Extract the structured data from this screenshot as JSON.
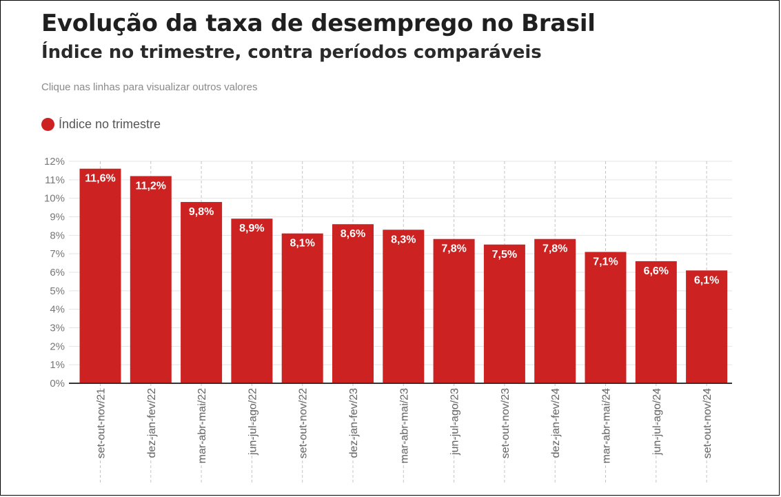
{
  "header": {
    "title": "Evolução da taxa de desemprego no Brasil",
    "subtitle": "Índice no trimestre, contra períodos comparáveis",
    "hint": "Clique nas linhas para visualizar outros valores"
  },
  "legend": {
    "label": "Índice no trimestre",
    "color": "#cc2222"
  },
  "chart_data": {
    "type": "bar",
    "title": "Evolução da taxa de desemprego no Brasil",
    "subtitle": "Índice no trimestre, contra períodos comparáveis",
    "xlabel": "",
    "ylabel": "",
    "ylim": [
      0,
      12
    ],
    "yticks": [
      0,
      1,
      2,
      3,
      4,
      5,
      6,
      7,
      8,
      9,
      10,
      11,
      12
    ],
    "ytick_labels": [
      "0%",
      "1%",
      "2%",
      "3%",
      "4%",
      "5%",
      "6%",
      "7%",
      "8%",
      "9%",
      "10%",
      "11%",
      "12%"
    ],
    "grid": true,
    "legend_position": "top-left",
    "categories": [
      "set-out-nov/21",
      "dez-jan-fev/22",
      "mar-abr-mai/22",
      "jun-jul-ago/22",
      "set-out-nov/22",
      "dez-jan-fev/23",
      "mar-abr-mai/23",
      "jun-jul-ago/23",
      "set-out-nov/23",
      "dez-jan-fev/24",
      "mar-abr-mai/24",
      "jun-jul-ago/24",
      "set-out-nov/24"
    ],
    "series": [
      {
        "name": "Índice no trimestre",
        "color": "#cc2222",
        "values": [
          11.6,
          11.2,
          9.8,
          8.9,
          8.1,
          8.6,
          8.3,
          7.8,
          7.5,
          7.8,
          7.1,
          6.6,
          6.1
        ],
        "labels": [
          "11,6%",
          "11,2%",
          "9,8%",
          "8,9%",
          "8,1%",
          "8,6%",
          "8,3%",
          "7,8%",
          "7,5%",
          "7,8%",
          "7,1%",
          "6,6%",
          "6,1%"
        ]
      }
    ]
  }
}
